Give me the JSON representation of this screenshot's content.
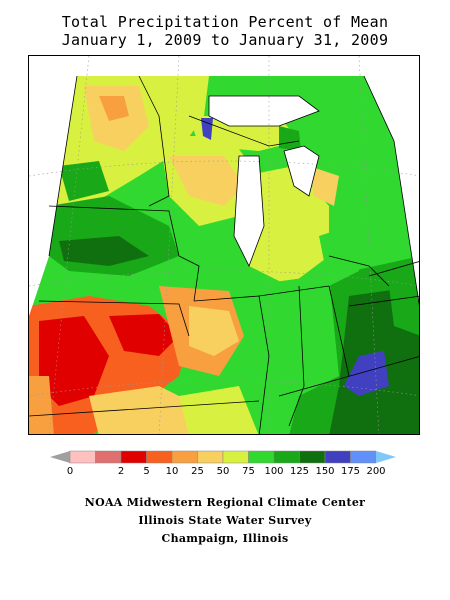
{
  "title": {
    "line1": "Total Precipitation Percent of Mean",
    "line2": "January 1, 2009 to January 31, 2009"
  },
  "legend": {
    "ticks": [
      "0",
      "2",
      "5",
      "10",
      "25",
      "50",
      "75",
      "100",
      "125",
      "150",
      "175",
      "200"
    ],
    "colors": [
      "#ffc0c0",
      "#e07070",
      "#e00000",
      "#f86020",
      "#f8a040",
      "#f8d060",
      "#d8f040",
      "#30d830",
      "#18a818",
      "#107010",
      "#4040c0",
      "#6090f8"
    ],
    "under_color": "#a0a0a0",
    "over_color": "#80c8f8"
  },
  "credits": {
    "line1": "NOAA Midwestern Regional Climate Center",
    "line2": "Illinois State Water Survey",
    "line3": "Champaign, Illinois"
  }
}
